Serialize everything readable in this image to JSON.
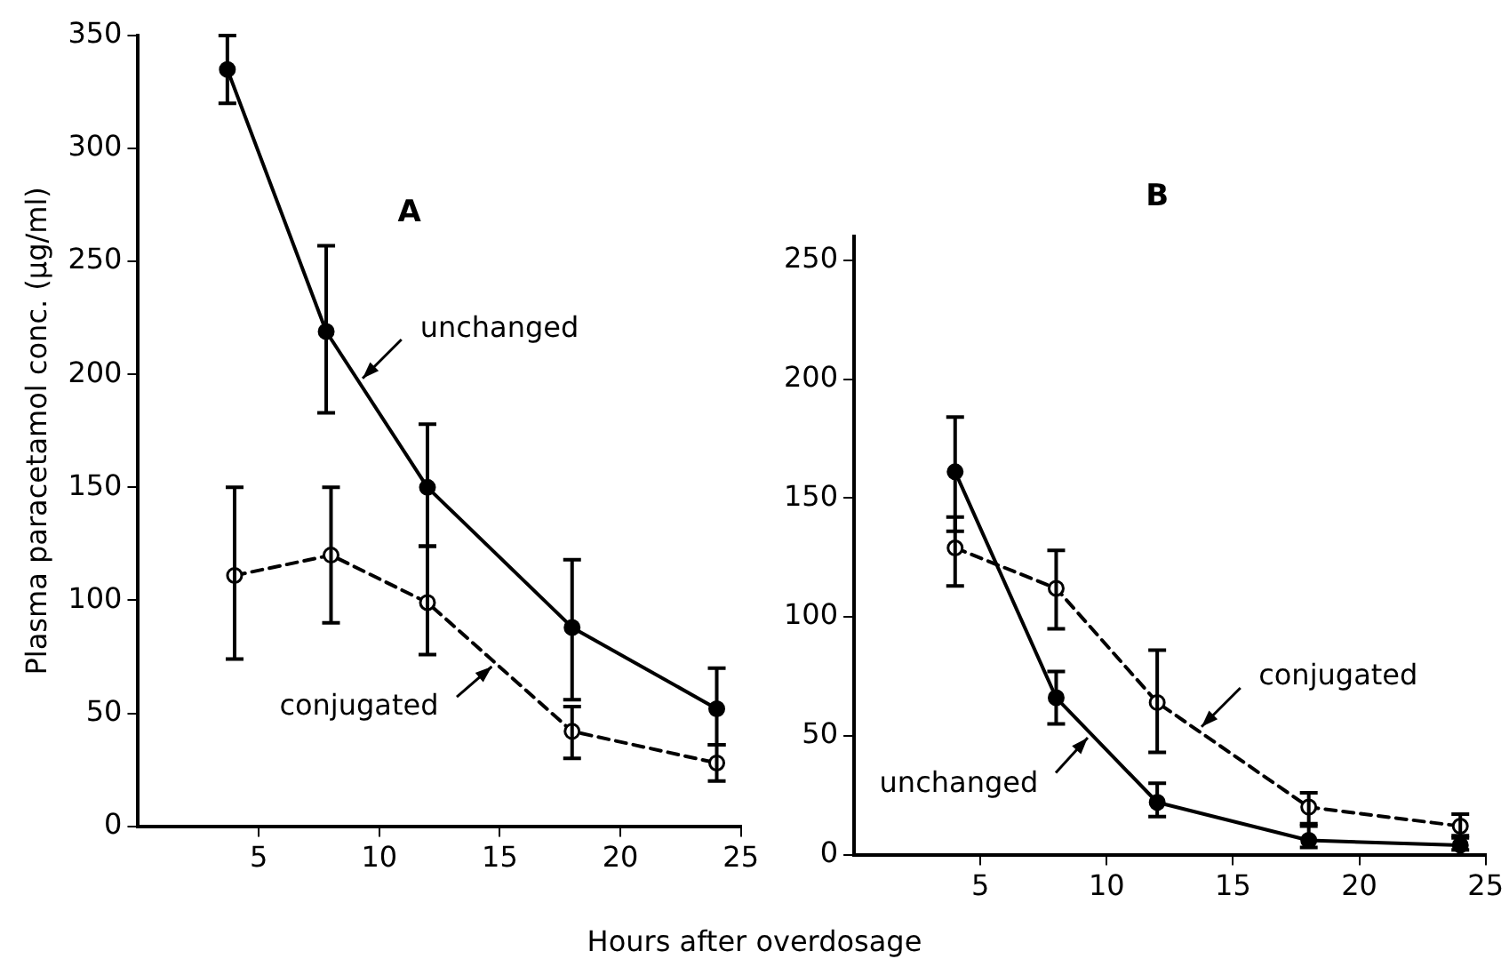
{
  "chart_data": [
    {
      "type": "line",
      "title": "A",
      "xlabel": "Hours after overdosage",
      "ylabel": "Plasma paracetamol conc. (μg/ml)",
      "xlim": [
        0,
        25
      ],
      "xticks": [
        5,
        10,
        15,
        20,
        25
      ],
      "ylim": [
        0,
        350
      ],
      "yticks": [
        0,
        50,
        100,
        150,
        200,
        250,
        300,
        350
      ],
      "grid": false,
      "legend": false,
      "marker": "circle",
      "series": [
        {
          "name": "unchanged",
          "color": "#000000",
          "line_style": "solid",
          "x": [
            3.7,
            7.8,
            12,
            18,
            24
          ],
          "values": [
            335,
            219,
            150,
            88,
            52
          ],
          "errors": [
            [
              320,
              350
            ],
            [
              183,
              257
            ],
            [
              124,
              178
            ],
            [
              56,
              118
            ],
            [
              36,
              70
            ]
          ]
        },
        {
          "name": "conjugated",
          "color": "#000000",
          "line_style": "dashed",
          "x": [
            4,
            8,
            12,
            18,
            24
          ],
          "values": [
            111,
            120,
            99,
            42,
            28
          ],
          "errors": [
            [
              74,
              150
            ],
            [
              90,
              150
            ],
            [
              76,
              124
            ],
            [
              30,
              53
            ],
            [
              20,
              36
            ]
          ]
        }
      ]
    },
    {
      "type": "line",
      "title": "B",
      "xlim": [
        0,
        25
      ],
      "xticks": [
        5,
        10,
        15,
        20,
        25
      ],
      "ylim": [
        0,
        260
      ],
      "yticks": [
        0,
        50,
        100,
        150,
        200,
        250
      ],
      "grid": false,
      "legend": false,
      "marker": "circle",
      "series": [
        {
          "name": "unchanged",
          "color": "#000000",
          "line_style": "solid",
          "x": [
            4,
            8,
            12,
            18,
            24
          ],
          "values": [
            161,
            66,
            22,
            6,
            4
          ],
          "errors": [
            [
              136,
              184
            ],
            [
              55,
              77
            ],
            [
              16,
              30
            ],
            [
              3,
              12
            ],
            [
              2,
              8
            ]
          ]
        },
        {
          "name": "conjugated",
          "color": "#000000",
          "line_style": "dashed",
          "x": [
            4,
            8,
            12,
            18,
            24
          ],
          "values": [
            129,
            112,
            64,
            20,
            12
          ],
          "errors": [
            [
              113,
              142
            ],
            [
              95,
              128
            ],
            [
              43,
              86
            ],
            [
              13,
              26
            ],
            [
              7,
              17
            ]
          ]
        }
      ]
    }
  ]
}
